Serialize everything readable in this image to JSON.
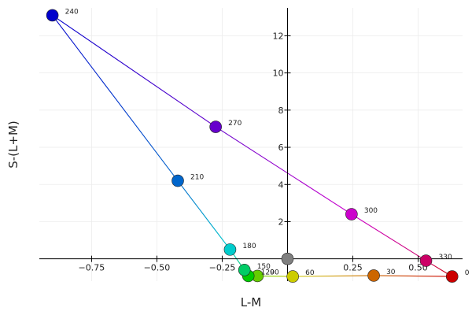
{
  "chart_data": {
    "type": "scatter",
    "xlabel": "L-M",
    "ylabel": "S-(L+M)",
    "xlim": [
      -0.95,
      0.67
    ],
    "ylim": [
      -1.2,
      13.5
    ],
    "grid": true,
    "legend": "none",
    "x_ticks": [
      {
        "value": -0.75,
        "label": "−0.75"
      },
      {
        "value": -0.5,
        "label": "−0.50"
      },
      {
        "value": -0.25,
        "label": "−0.25"
      },
      {
        "value": 0,
        "label": "0"
      },
      {
        "value": 0.25,
        "label": "0.25"
      },
      {
        "value": 0.5,
        "label": "0.50"
      }
    ],
    "y_ticks": [
      {
        "value": 2,
        "label": "2"
      },
      {
        "value": 4,
        "label": "4"
      },
      {
        "value": 6,
        "label": "6"
      },
      {
        "value": 8,
        "label": "8"
      },
      {
        "value": 10,
        "label": "10"
      },
      {
        "value": 12,
        "label": "12"
      }
    ],
    "center": {
      "x": 0.0,
      "y": 0.0,
      "color": "#808080"
    },
    "points": [
      {
        "label": "0",
        "x": 0.63,
        "y": -0.95,
        "color": "#cc0000"
      },
      {
        "label": "30",
        "x": 0.33,
        "y": -0.9,
        "color": "#cc6600"
      },
      {
        "label": "60",
        "x": 0.02,
        "y": -0.95,
        "color": "#cccc00"
      },
      {
        "label": "90",
        "x": -0.115,
        "y": -0.92,
        "color": "#66cc00"
      },
      {
        "label": "120",
        "x": -0.15,
        "y": -0.92,
        "color": "#00cc00"
      },
      {
        "label": "150",
        "x": -0.165,
        "y": -0.6,
        "color": "#00cc66"
      },
      {
        "label": "180",
        "x": -0.22,
        "y": 0.5,
        "color": "#00cccc"
      },
      {
        "label": "210",
        "x": -0.42,
        "y": 4.2,
        "color": "#0066cc"
      },
      {
        "label": "240",
        "x": -0.9,
        "y": 13.1,
        "color": "#0000cc"
      },
      {
        "label": "270",
        "x": -0.275,
        "y": 7.1,
        "color": "#6600cc"
      },
      {
        "label": "300",
        "x": 0.245,
        "y": 2.4,
        "color": "#cc00cc"
      },
      {
        "label": "330",
        "x": 0.53,
        "y": -0.1,
        "color": "#cc0066"
      }
    ]
  }
}
